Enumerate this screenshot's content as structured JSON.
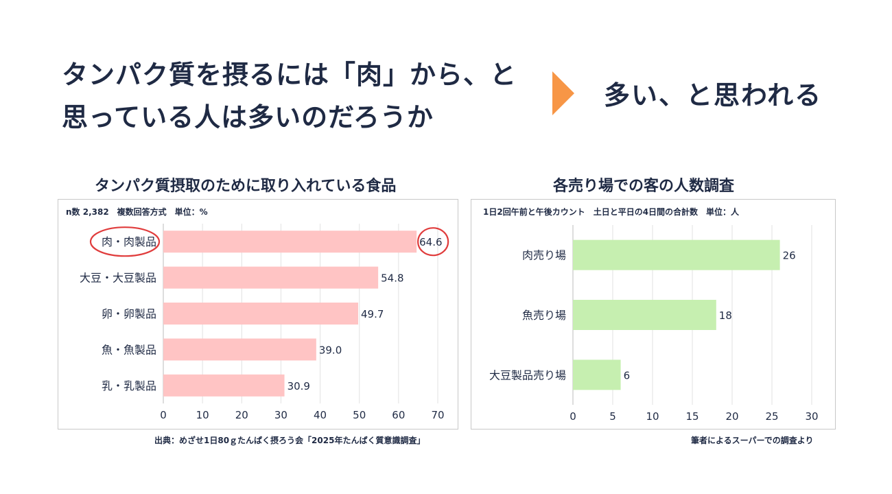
{
  "headline": {
    "line1": "タンパク質を摂るには「肉」から、と",
    "line2": "思っている人は多いのだろうか"
  },
  "answer": "多い、と思われる",
  "colors": {
    "arrow": "#f79646",
    "bar_left": "#ffc4c4",
    "bar_right": "#c6efb0",
    "highlight": "#e03c3c",
    "text": "#1f2a44"
  },
  "chart_data": [
    {
      "type": "bar",
      "orientation": "horizontal",
      "title": "タンパク質摂取のために取り入れている食品",
      "note": "n数 2,382　複数回答方式　単位：%",
      "categories": [
        "肉・肉製品",
        "大豆・大豆製品",
        "卵・卵製品",
        "魚・魚製品",
        "乳・乳製品"
      ],
      "values": [
        64.6,
        54.8,
        49.7,
        39.0,
        30.9
      ],
      "value_labels": [
        "64.6",
        "54.8",
        "49.7",
        "39.0",
        "30.9"
      ],
      "ticks": [
        "0",
        "10",
        "20",
        "30",
        "40",
        "50",
        "60",
        "70"
      ],
      "xlim": [
        0,
        70
      ],
      "highlight_index": 0,
      "source": "出典：めざせ1日80ｇたんぱく摂ろう会「2025年たんぱく質意識調査」"
    },
    {
      "type": "bar",
      "orientation": "horizontal",
      "title": "各売り場での客の人数調査",
      "note": "1日2回午前と午後カウント　土日と平日の4日間の合計数　単位：人",
      "categories": [
        "肉売り場",
        "魚売り場",
        "大豆製品売り場"
      ],
      "values": [
        26,
        18,
        6
      ],
      "value_labels": [
        "26",
        "18",
        "6"
      ],
      "ticks": [
        "0",
        "5",
        "10",
        "15",
        "20",
        "25",
        "30"
      ],
      "xlim": [
        0,
        30
      ],
      "source": "筆者によるスーパーでの調査より"
    }
  ]
}
